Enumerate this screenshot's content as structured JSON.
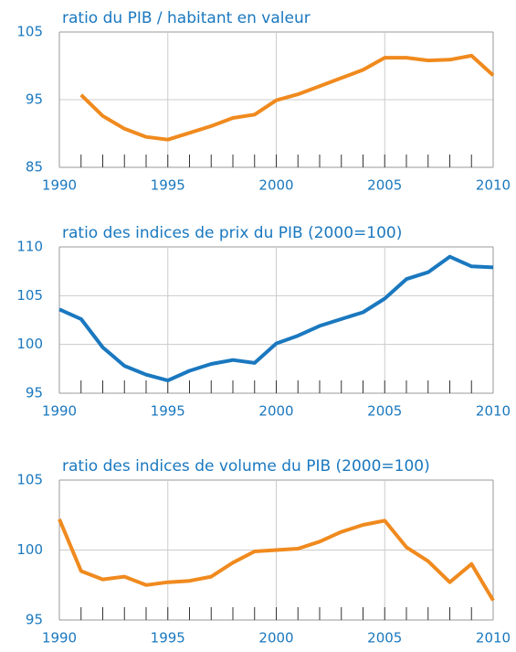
{
  "chart_data": [
    {
      "type": "line",
      "title": "ratio du PIB / habitant en valeur",
      "x": [
        1991,
        1992,
        1993,
        1994,
        1995,
        1996,
        1997,
        1998,
        1999,
        2000,
        2001,
        2002,
        2003,
        2004,
        2005,
        2006,
        2007,
        2008,
        2009,
        2010
      ],
      "series": [
        {
          "color": "#f08a1e",
          "values": [
            95.7,
            92.6,
            90.7,
            89.5,
            89.1,
            90.1,
            91.1,
            92.3,
            92.8,
            94.9,
            95.8,
            97.0,
            98.2,
            99.4,
            101.2,
            101.2,
            100.8,
            100.9,
            101.5,
            98.6
          ]
        }
      ],
      "xlim": [
        1990,
        2010
      ],
      "xticks": [
        1990,
        1995,
        2000,
        2005,
        2010
      ],
      "ylim": [
        85,
        105
      ],
      "yticks": [
        85,
        95,
        105
      ],
      "grid": true
    },
    {
      "type": "line",
      "title": "ratio des indices de prix du PIB (2000=100)",
      "x": [
        1990,
        1991,
        1992,
        1993,
        1994,
        1995,
        1996,
        1997,
        1998,
        1999,
        2000,
        2001,
        2002,
        2003,
        2004,
        2005,
        2006,
        2007,
        2008,
        2009,
        2010
      ],
      "series": [
        {
          "color": "#1a78bf",
          "values": [
            103.6,
            102.6,
            99.7,
            97.8,
            96.9,
            96.3,
            97.3,
            98.0,
            98.4,
            98.1,
            100.1,
            100.9,
            101.9,
            102.6,
            103.3,
            104.7,
            106.7,
            107.4,
            109.0,
            108.0,
            107.9
          ]
        }
      ],
      "xlim": [
        1990,
        2010
      ],
      "xticks": [
        1990,
        1995,
        2000,
        2005,
        2010
      ],
      "ylim": [
        95,
        110
      ],
      "yticks": [
        95,
        100,
        105,
        110
      ],
      "grid": true
    },
    {
      "type": "line",
      "title": "ratio des indices de volume du PIB (2000=100)",
      "x": [
        1990,
        1991,
        1992,
        1993,
        1994,
        1995,
        1996,
        1997,
        1998,
        1999,
        2000,
        2001,
        2002,
        2003,
        2004,
        2005,
        2006,
        2007,
        2008,
        2009,
        2010
      ],
      "series": [
        {
          "color": "#f08a1e",
          "values": [
            102.2,
            98.5,
            97.9,
            98.1,
            97.5,
            97.7,
            97.8,
            98.1,
            99.1,
            99.9,
            100.0,
            100.1,
            100.6,
            101.3,
            101.8,
            102.1,
            100.2,
            99.2,
            97.7,
            99.0,
            96.4
          ]
        }
      ],
      "xlim": [
        1990,
        2010
      ],
      "xticks": [
        1990,
        1995,
        2000,
        2005,
        2010
      ],
      "ylim": [
        95,
        105
      ],
      "yticks": [
        95,
        100,
        105
      ],
      "grid": true
    }
  ]
}
